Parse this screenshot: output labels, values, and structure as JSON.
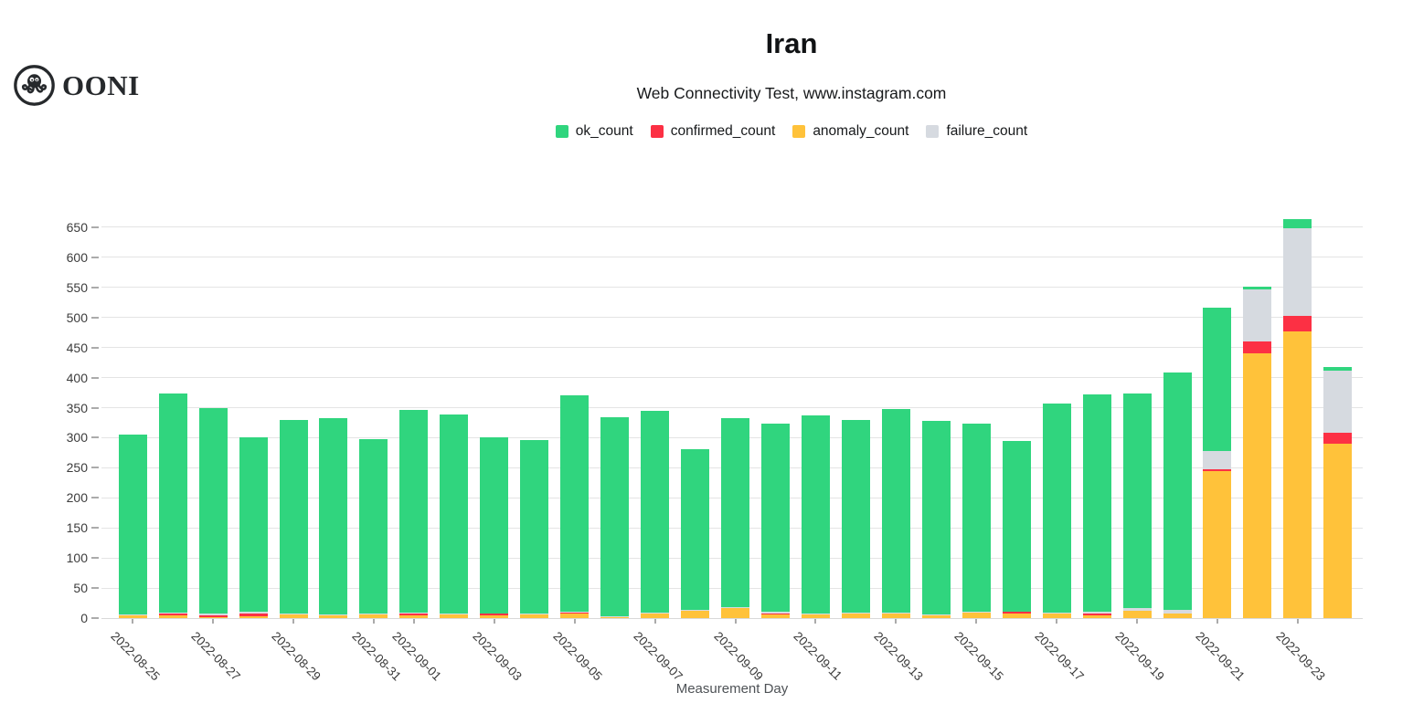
{
  "logo": {
    "text": "OONI"
  },
  "header": {
    "title": "Iran",
    "subtitle": "Web Connectivity Test, www.instagram.com"
  },
  "legend": {
    "items": [
      {
        "label": "ok_count",
        "color": "#30d57e"
      },
      {
        "label": "confirmed_count",
        "color": "#fc3044"
      },
      {
        "label": "anomaly_count",
        "color": "#ffc23a"
      },
      {
        "label": "failure_count",
        "color": "#d6dae0"
      }
    ]
  },
  "x_axis": {
    "title": "Measurement Day"
  },
  "chart_data": {
    "type": "bar",
    "stacked": true,
    "title": "Iran",
    "subtitle": "Web Connectivity Test, www.instagram.com",
    "xlabel": "Measurement Day",
    "ylabel": "",
    "ylim": [
      0,
      680
    ],
    "grid": "horizontal",
    "legend_position": "top",
    "y_ticks": [
      0,
      50,
      100,
      150,
      200,
      250,
      300,
      350,
      400,
      450,
      500,
      550,
      600,
      650
    ],
    "categories": [
      "2022-08-25",
      "2022-08-26",
      "2022-08-27",
      "2022-08-28",
      "2022-08-29",
      "2022-08-30",
      "2022-08-31",
      "2022-09-01",
      "2022-09-02",
      "2022-09-03",
      "2022-09-04",
      "2022-09-05",
      "2022-09-06",
      "2022-09-07",
      "2022-09-08",
      "2022-09-09",
      "2022-09-10",
      "2022-09-11",
      "2022-09-12",
      "2022-09-13",
      "2022-09-14",
      "2022-09-15",
      "2022-09-16",
      "2022-09-17",
      "2022-09-18",
      "2022-09-19",
      "2022-09-20",
      "2022-09-21",
      "2022-09-22",
      "2022-09-23",
      "2022-09-24"
    ],
    "stack_order": [
      "anomaly_count",
      "confirmed_count",
      "failure_count",
      "ok_count"
    ],
    "series": [
      {
        "name": "ok_count",
        "color": "#30d57e",
        "values": [
          299,
          365,
          342,
          290,
          323,
          327,
          290,
          337,
          330,
          292,
          289,
          359,
          331,
          336,
          268,
          314,
          313,
          330,
          321,
          339,
          322,
          313,
          284,
          348,
          362,
          356,
          395,
          238,
          5,
          15,
          6
        ]
      },
      {
        "name": "confirmed_count",
        "color": "#fc3044",
        "values": [
          0,
          3,
          2,
          5,
          0,
          0,
          0,
          3,
          0,
          3,
          0,
          2,
          0,
          0,
          0,
          0,
          2,
          0,
          0,
          0,
          0,
          0,
          3,
          0,
          3,
          0,
          0,
          3,
          19,
          26,
          18
        ]
      },
      {
        "name": "anomaly_count",
        "color": "#ffc23a",
        "values": [
          4,
          4,
          2,
          3,
          6,
          4,
          7,
          5,
          7,
          5,
          6,
          7,
          2,
          7,
          12,
          16,
          6,
          6,
          7,
          8,
          5,
          9,
          8,
          7,
          5,
          12,
          8,
          245,
          441,
          477,
          290
        ]
      },
      {
        "name": "failure_count",
        "color": "#d6dae0",
        "values": [
          2,
          2,
          4,
          2,
          1,
          2,
          1,
          1,
          1,
          0,
          1,
          2,
          1,
          2,
          1,
          2,
          2,
          1,
          2,
          1,
          1,
          1,
          0,
          2,
          2,
          5,
          5,
          30,
          86,
          145,
          104
        ]
      }
    ],
    "x_ticks": [
      {
        "index": 0,
        "label": "2022-08-25"
      },
      {
        "index": 2,
        "label": "2022-08-27"
      },
      {
        "index": 4,
        "label": "2022-08-29"
      },
      {
        "index": 6,
        "label": "2022-08-31"
      },
      {
        "index": 7,
        "label": "2022-09-01"
      },
      {
        "index": 9,
        "label": "2022-09-03"
      },
      {
        "index": 11,
        "label": "2022-09-05"
      },
      {
        "index": 13,
        "label": "2022-09-07"
      },
      {
        "index": 15,
        "label": "2022-09-09"
      },
      {
        "index": 17,
        "label": "2022-09-11"
      },
      {
        "index": 19,
        "label": "2022-09-13"
      },
      {
        "index": 21,
        "label": "2022-09-15"
      },
      {
        "index": 23,
        "label": "2022-09-17"
      },
      {
        "index": 25,
        "label": "2022-09-19"
      },
      {
        "index": 27,
        "label": "2022-09-21"
      },
      {
        "index": 29,
        "label": "2022-09-23"
      }
    ]
  }
}
